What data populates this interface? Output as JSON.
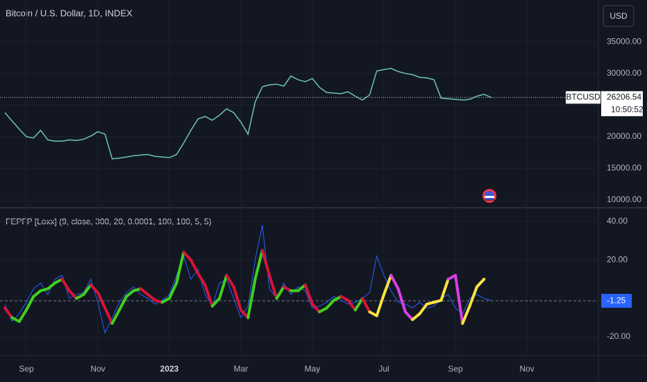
{
  "header": {
    "currency": "USD"
  },
  "chart_data": [
    {
      "type": "line",
      "title": "Bitcoin / U.S. Dollar, 1D, INDEX",
      "series": [
        {
          "color": "#6fc3bb",
          "values": [
            23800,
            22500,
            21200,
            20000,
            19800,
            21000,
            19500,
            19300,
            19300,
            19500,
            19400,
            19600,
            20100,
            20800,
            20400,
            16500,
            16600,
            16800,
            17000,
            17100,
            17200,
            16900,
            16800,
            16700,
            17200,
            19000,
            21000,
            22800,
            23200,
            22600,
            23400,
            24400,
            23800,
            22300,
            20400,
            25500,
            27900,
            28200,
            28300,
            28000,
            29600,
            29000,
            28700,
            29200,
            27800,
            27000,
            26900,
            26800,
            27100,
            26400,
            25800,
            26600,
            30400,
            30600,
            30800,
            30300,
            30000,
            29800,
            29400,
            29300,
            29000,
            26100,
            26000,
            25900,
            25800,
            25900,
            26400,
            26700,
            26200,
            null,
            null,
            null,
            null,
            null
          ]
        }
      ],
      "ylim": [
        8900,
        41600
      ],
      "yticks": [
        {
          "value": 10000,
          "label": "10000.00"
        },
        {
          "value": 15000,
          "label": "15000.00"
        },
        {
          "value": 20000,
          "label": "20000.00"
        },
        {
          "value": 25000,
          "label": "25000.00"
        },
        {
          "value": 30000,
          "label": "30000.00"
        },
        {
          "value": 35000,
          "label": "35000.00"
        }
      ],
      "grid": true,
      "last_value": {
        "value": 26206.54,
        "label": "26206.54"
      },
      "symbol": "BTCUSD",
      "countdown": "10:50:52"
    },
    {
      "type": "line",
      "title": "FEPFP [Loxx] (9, close, 300, 20, 0.0001, 100, 100, 5, 5)",
      "categories": [
        null,
        null,
        null,
        "Sep",
        null,
        null,
        null,
        null,
        null,
        null,
        null,
        null,
        null,
        "Nov",
        null,
        null,
        null,
        null,
        null,
        null,
        null,
        null,
        null,
        "2023",
        null,
        null,
        null,
        null,
        null,
        null,
        null,
        null,
        null,
        "Mar",
        null,
        null,
        null,
        null,
        null,
        null,
        null,
        null,
        null,
        "May",
        null,
        null,
        null,
        null,
        null,
        null,
        null,
        null,
        null,
        "Jul",
        null,
        null,
        null,
        null,
        null,
        null,
        null,
        null,
        null,
        "Sep",
        null,
        null,
        null,
        null,
        null,
        null,
        null,
        null,
        null,
        "Nov"
      ],
      "series": [
        {
          "color": "#2962ff",
          "values": [
            -3,
            -12,
            -8,
            -2,
            5,
            8,
            2,
            10,
            12,
            0,
            2,
            3,
            10,
            -2,
            -18,
            -10,
            -2,
            3,
            6,
            2,
            0,
            -3,
            -1,
            2,
            12,
            22,
            10,
            15,
            2,
            -4,
            8,
            10,
            0,
            -10,
            -4,
            20,
            38,
            5,
            0,
            8,
            2,
            6,
            4,
            -5,
            -4,
            -2,
            1,
            -1,
            -3,
            -2,
            0,
            3,
            22,
            12,
            4,
            -2,
            -3,
            -5,
            -2,
            -5,
            -4,
            0,
            2,
            -5,
            -8,
            0,
            2,
            0,
            -1,
            null,
            null,
            null,
            null,
            null
          ]
        },
        {
          "colors": [
            "#d61439",
            "#d61439",
            "#3fd01e",
            "#3fd01e",
            "#3fd01e",
            "#3fd01e",
            "#3fd01e",
            "#3fd01e",
            "#3fd01e",
            "#d61439",
            "#d61439",
            "#3fd01e",
            "#3fd01e",
            "#d61439",
            "#d61439",
            "#d61439",
            "#3fd01e",
            "#3fd01e",
            "#3fd01e",
            "#3fd01e",
            "#d61439",
            "#d61439",
            "#d61439",
            "#3fd01e",
            "#3fd01e",
            "#3fd01e",
            "#d61439",
            "#d61439",
            "#d61439",
            "#d61439",
            "#3fd01e",
            "#3fd01e",
            "#d61439",
            "#d61439",
            "#d61439",
            "#3fd01e",
            "#3fd01e",
            "#d61439",
            "#d61439",
            "#3fd01e",
            "#d61439",
            "#3fd01e",
            "#3fd01e",
            "#d61439",
            "#d61439",
            "#3fd01e",
            "#3fd01e",
            "#3fd01e",
            "#d61439",
            "#d61439",
            "#3fd01e",
            "#d61439",
            "#f9e43e",
            "#f9e43e",
            "#f9e43e",
            "#d840e6",
            "#d840e6",
            "#d840e6",
            "#f9e43e",
            "#f9e43e",
            "#f9e43e",
            "#f9e43e",
            "#f9e43e",
            "#d840e6",
            "#d840e6",
            "#f9e43e",
            "#f9e43e",
            "#f9e43e",
            null,
            null,
            null,
            null,
            null,
            null
          ],
          "values": [
            -5,
            -10,
            -12,
            -6,
            1,
            4,
            5,
            8,
            10,
            4,
            0,
            2,
            7,
            3,
            -5,
            -13,
            -6,
            1,
            4,
            5,
            2,
            -1,
            -2,
            0,
            8,
            24,
            20,
            13,
            7,
            -4,
            0,
            12,
            6,
            -6,
            -10,
            10,
            25,
            12,
            0,
            6,
            4,
            4,
            7,
            -3,
            -7,
            -5,
            -1,
            1,
            -1,
            -6,
            0,
            -7,
            -9,
            2,
            12,
            5,
            -7,
            -11,
            -8,
            -3,
            -2,
            -1,
            10,
            12,
            -13,
            -4,
            6,
            10,
            null,
            null,
            null,
            null,
            null,
            null
          ]
        }
      ],
      "ylim": [
        -29,
        46.8
      ],
      "yticks": [
        {
          "value": 40,
          "label": "40.00"
        },
        {
          "value": 20,
          "label": "20.00"
        },
        {
          "value": -20,
          "label": "-20.00"
        }
      ],
      "grid": true,
      "last_value": {
        "value": -1.25,
        "label": "-1.25"
      }
    }
  ]
}
